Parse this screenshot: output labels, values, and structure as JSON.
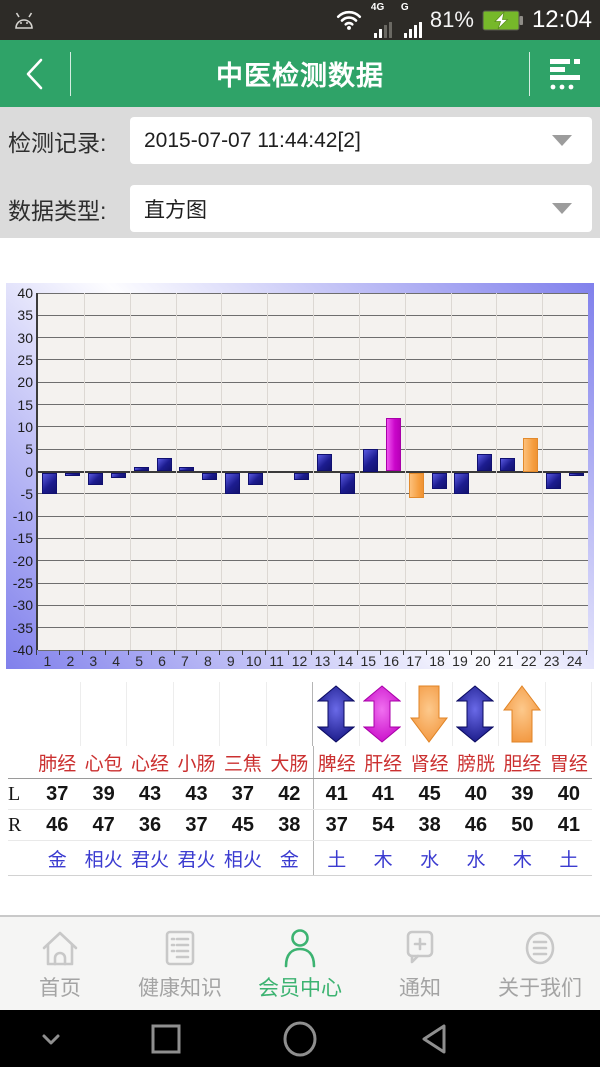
{
  "status_bar": {
    "time": "12:04",
    "battery_percent": "81%",
    "net1": "4G",
    "net2": "G"
  },
  "header": {
    "title": "中医检测数据"
  },
  "filters": {
    "record_label": "检测记录:",
    "record_value": "2015-07-07 11:44:42[2]",
    "type_label": "数据类型:",
    "type_value": "直方图"
  },
  "chart_data": {
    "type": "bar",
    "title": "",
    "xlabel": "",
    "ylabel": "",
    "categories": [
      1,
      2,
      3,
      4,
      5,
      6,
      7,
      8,
      9,
      10,
      11,
      12,
      13,
      14,
      15,
      16,
      17,
      18,
      19,
      20,
      21,
      22,
      23,
      24
    ],
    "values": [
      -5,
      -1,
      -3,
      -1.5,
      1,
      3,
      1,
      -2,
      -5,
      -3,
      0,
      -2,
      4,
      -5,
      5,
      12,
      -6,
      -4,
      -5,
      4,
      3,
      7.5,
      -4,
      -1
    ],
    "bar_colors": [
      "blue",
      "blue",
      "blue",
      "blue",
      "blue",
      "blue",
      "blue",
      "blue",
      "blue",
      "blue",
      "blue",
      "blue",
      "blue",
      "blue",
      "blue",
      "magenta",
      "orange",
      "blue",
      "blue",
      "blue",
      "blue",
      "orange",
      "blue",
      "blue"
    ],
    "ylim": [
      -40,
      40
    ],
    "ytick_step": 5,
    "grid": true,
    "legend": "none",
    "palette": {
      "blue": "#1c1c90",
      "magenta": "#cb06cb",
      "orange": "#f59d3e"
    }
  },
  "table": {
    "row_labels": {
      "left": "L",
      "right": "R"
    },
    "columns": [
      {
        "name": "肺经",
        "arrow": "none",
        "L": 37,
        "R": 46,
        "element": "金"
      },
      {
        "name": "心包",
        "arrow": "none",
        "L": 39,
        "R": 47,
        "element": "相火"
      },
      {
        "name": "心经",
        "arrow": "none",
        "L": 43,
        "R": 36,
        "element": "君火"
      },
      {
        "name": "小肠",
        "arrow": "none",
        "L": 43,
        "R": 37,
        "element": "君火"
      },
      {
        "name": "三焦",
        "arrow": "none",
        "L": 37,
        "R": 45,
        "element": "相火"
      },
      {
        "name": "大肠",
        "arrow": "none",
        "L": 42,
        "R": 38,
        "element": "金"
      },
      {
        "name": "脾经",
        "arrow": "double-blue",
        "L": 41,
        "R": 37,
        "element": "土"
      },
      {
        "name": "肝经",
        "arrow": "double-magenta",
        "L": 41,
        "R": 54,
        "element": "木"
      },
      {
        "name": "肾经",
        "arrow": "down-orange",
        "L": 45,
        "R": 38,
        "element": "水"
      },
      {
        "name": "膀胱",
        "arrow": "double-blue",
        "L": 40,
        "R": 46,
        "element": "水"
      },
      {
        "name": "胆经",
        "arrow": "up-orange",
        "L": 39,
        "R": 50,
        "element": "木"
      },
      {
        "name": "胃经",
        "arrow": "none",
        "L": 40,
        "R": 41,
        "element": "土"
      }
    ]
  },
  "bottom_nav": {
    "active_color": "#3cb371",
    "inactive_icon_color": "#c8c8c8",
    "inactive_text_color": "#a4a4a4",
    "items": [
      {
        "label": "首页",
        "icon": "home-icon",
        "active": false
      },
      {
        "label": "健康知识",
        "icon": "knowledge-icon",
        "active": false
      },
      {
        "label": "会员中心",
        "icon": "member-icon",
        "active": true
      },
      {
        "label": "通知",
        "icon": "notification-icon",
        "active": false
      },
      {
        "label": "关于我们",
        "icon": "about-icon",
        "active": false
      }
    ]
  }
}
